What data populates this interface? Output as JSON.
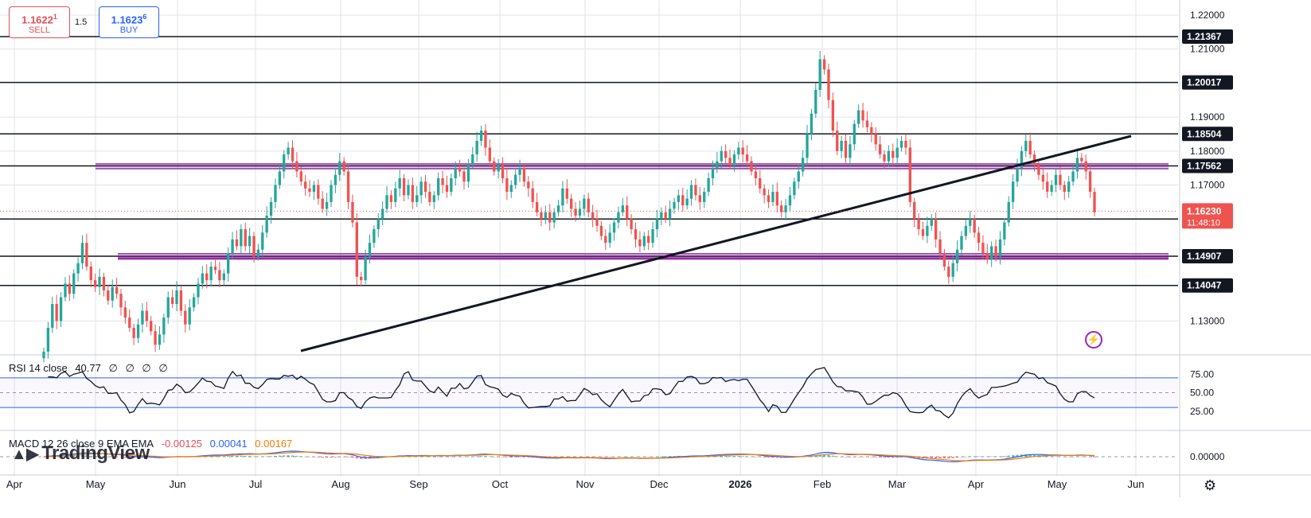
{
  "trade_panel": {
    "sell_price": "1.1622",
    "sell_sup": "1",
    "sell_label": "SELL",
    "spread": "1.5",
    "buy_price": "1.1623",
    "buy_sup": "6",
    "buy_label": "BUY"
  },
  "indicators": {
    "rsi": {
      "name": "RSI 14 close",
      "value": "40.77",
      "extras": [
        "∅",
        "∅",
        "∅",
        "∅"
      ]
    },
    "macd": {
      "name": "MACD 12 26 close 9 EMA EMA",
      "hist": "-0.00125",
      "macd": "0.00041",
      "signal": "0.00167"
    }
  },
  "watermark": "TradingView",
  "colors": {
    "up": "#26a69a",
    "down": "#ef5350",
    "zone": "#9c27b0",
    "level": "#131722",
    "macd": "#2962ff",
    "signal": "#f57c00"
  },
  "chart_data": {
    "type": "candlestick",
    "symbol_hint": "EUR/USD daily",
    "x_ticks": [
      "Apr",
      "May",
      "Jun",
      "Jul",
      "Aug",
      "Sep",
      "Oct",
      "Nov",
      "Dec",
      "2026",
      "Feb",
      "Mar",
      "Apr",
      "May",
      "Jun"
    ],
    "y_ticks": [
      "1.22000",
      "1.21000",
      "1.19000",
      "1.18000",
      "1.17000",
      "1.13000"
    ],
    "ylim": [
      1.1205,
      1.2235
    ],
    "levels": [
      "1.21367",
      "1.20017",
      "1.18504",
      "1.17562",
      "1.16000",
      "1.14907",
      "1.14047"
    ],
    "zones": [
      {
        "price": 1.1755,
        "from": "May",
        "to": "Jun"
      },
      {
        "price": 1.1491,
        "from": "May",
        "to": "Jun"
      }
    ],
    "trendline": [
      {
        "date": "Jul 2025",
        "price": 1.1205
      },
      {
        "date": "May 2026",
        "price": 1.1849
      }
    ],
    "current_price": "1.16230",
    "countdown": "11:48:10",
    "closes": [
      1.121,
      1.128,
      1.135,
      1.13,
      1.137,
      1.141,
      1.138,
      1.144,
      1.147,
      1.153,
      1.146,
      1.142,
      1.14,
      1.143,
      1.139,
      1.136,
      1.14,
      1.138,
      1.134,
      1.131,
      1.128,
      1.125,
      1.129,
      1.133,
      1.13,
      1.127,
      1.123,
      1.126,
      1.131,
      1.137,
      1.135,
      1.139,
      1.133,
      1.129,
      1.134,
      1.137,
      1.141,
      1.144,
      1.142,
      1.146,
      1.145,
      1.142,
      1.144,
      1.15,
      1.154,
      1.152,
      1.157,
      1.152,
      1.155,
      1.149,
      1.151,
      1.156,
      1.161,
      1.165,
      1.17,
      1.174,
      1.179,
      1.181,
      1.177,
      1.174,
      1.171,
      1.169,
      1.168,
      1.17,
      1.166,
      1.163,
      1.165,
      1.17,
      1.173,
      1.177,
      1.174,
      1.165,
      1.159,
      1.143,
      1.142,
      1.149,
      1.153,
      1.157,
      1.16,
      1.163,
      1.167,
      1.165,
      1.169,
      1.172,
      1.167,
      1.17,
      1.165,
      1.167,
      1.171,
      1.168,
      1.165,
      1.167,
      1.172,
      1.17,
      1.168,
      1.172,
      1.175,
      1.174,
      1.171,
      1.176,
      1.179,
      1.183,
      1.186,
      1.181,
      1.177,
      1.174,
      1.176,
      1.172,
      1.168,
      1.17,
      1.173,
      1.175,
      1.171,
      1.169,
      1.165,
      1.162,
      1.16,
      1.162,
      1.159,
      1.162,
      1.164,
      1.169,
      1.166,
      1.163,
      1.161,
      1.163,
      1.166,
      1.162,
      1.16,
      1.158,
      1.155,
      1.153,
      1.156,
      1.159,
      1.162,
      1.164,
      1.16,
      1.157,
      1.154,
      1.152,
      1.155,
      1.153,
      1.157,
      1.16,
      1.162,
      1.16,
      1.163,
      1.165,
      1.167,
      1.164,
      1.166,
      1.17,
      1.167,
      1.165,
      1.168,
      1.172,
      1.175,
      1.177,
      1.18,
      1.178,
      1.176,
      1.179,
      1.181,
      1.179,
      1.177,
      1.174,
      1.172,
      1.169,
      1.167,
      1.165,
      1.168,
      1.164,
      1.162,
      1.164,
      1.167,
      1.171,
      1.174,
      1.178,
      1.185,
      1.191,
      1.198,
      1.207,
      1.204,
      1.195,
      1.186,
      1.18,
      1.183,
      1.178,
      1.182,
      1.188,
      1.192,
      1.189,
      1.187,
      1.185,
      1.182,
      1.179,
      1.177,
      1.18,
      1.178,
      1.181,
      1.183,
      1.181,
      1.165,
      1.16,
      1.157,
      1.155,
      1.158,
      1.16,
      1.154,
      1.15,
      1.146,
      1.143,
      1.147,
      1.151,
      1.155,
      1.158,
      1.16,
      1.156,
      1.153,
      1.15,
      1.148,
      1.152,
      1.149,
      1.154,
      1.159,
      1.165,
      1.171,
      1.175,
      1.18,
      1.183,
      1.179,
      1.176,
      1.173,
      1.171,
      1.168,
      1.17,
      1.173,
      1.17,
      1.168,
      1.171,
      1.174,
      1.178,
      1.177,
      1.174,
      1.168,
      1.162
    ],
    "rsi": {
      "ylim": [
        0,
        100
      ],
      "y_ticks": [
        "75.00",
        "50.00",
        "25.00"
      ],
      "bands": [
        70,
        50,
        30
      ]
    },
    "macd_panel": {
      "y_ticks": [
        "0.00000"
      ]
    }
  }
}
